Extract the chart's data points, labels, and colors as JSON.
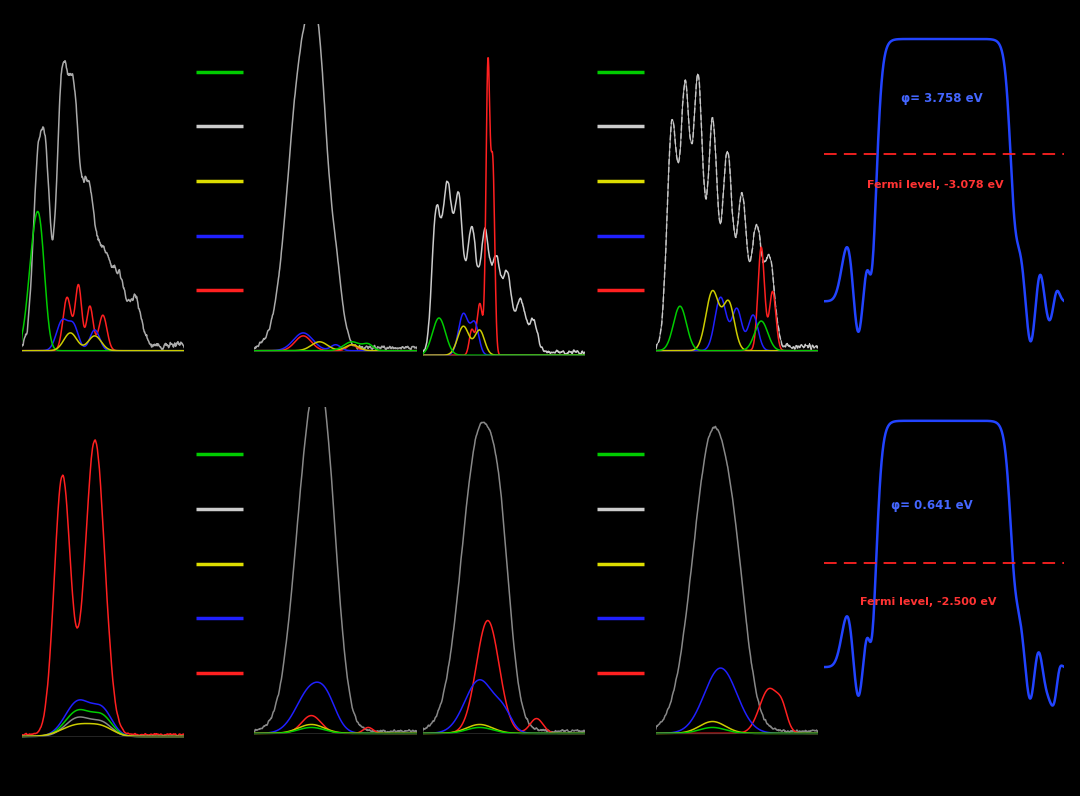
{
  "bg": "#000000",
  "legend_colors": [
    "#00cc00",
    "#cccccc",
    "#dddd00",
    "#2020ff",
    "#ff2020"
  ],
  "wf_top_text": "φ= 3.758 eV",
  "wf_top_fermi": "Fermi level, -3.078 eV",
  "wf_bottom_text": "φ= 0.641 eV",
  "wf_bottom_fermi": "Fermi level, -2.500 eV",
  "wf_top_color": "#2244ff",
  "wf_fermi_color": "#ff2222",
  "wf_text_color_blue": "#4466ff",
  "wf_text_color_red": "#ff3333"
}
